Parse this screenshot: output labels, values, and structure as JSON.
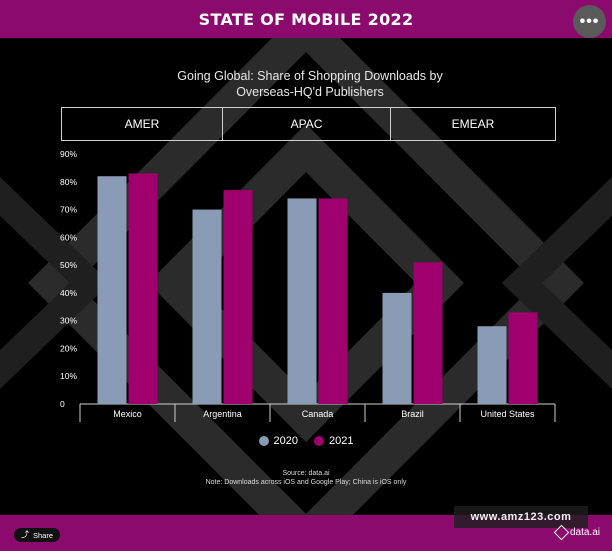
{
  "header": {
    "title": "STATE OF MOBILE 2022",
    "more_label": "•••"
  },
  "chart_data": {
    "type": "bar",
    "title": "Going Global: Share of Shopping Downloads by Overseas-HQ'd Publishers",
    "title_lines": [
      "Going Global: Share of Shopping Downloads by",
      "Overseas-HQ'd Publishers"
    ],
    "region_groups": [
      {
        "label": "AMER"
      },
      {
        "label": "APAC"
      },
      {
        "label": "EMEAR"
      }
    ],
    "categories": [
      "Mexico",
      "Argentina",
      "Canada",
      "Brazil",
      "United States"
    ],
    "series": [
      {
        "name": "2020",
        "color": "#8a9bb5",
        "values": [
          82,
          70,
          74,
          40,
          28
        ]
      },
      {
        "name": "2021",
        "color": "#a0006e",
        "values": [
          83,
          77,
          74,
          51,
          33
        ]
      }
    ],
    "ylim": [
      0,
      90
    ],
    "y_ticks": [
      "0",
      "10%",
      "20%",
      "30%",
      "40%",
      "50%",
      "60%",
      "70%",
      "80%",
      "90%"
    ],
    "xlabel": "",
    "ylabel": "",
    "grid": false,
    "legend_position": "bottom-center"
  },
  "source": {
    "line1": "Source: data.ai",
    "line2": "Note: Downloads across iOS and Google Play; China is iOS only"
  },
  "footer": {
    "share_label": "Share",
    "watermark": "www.amz123.com",
    "logo_text": "data.ai"
  }
}
